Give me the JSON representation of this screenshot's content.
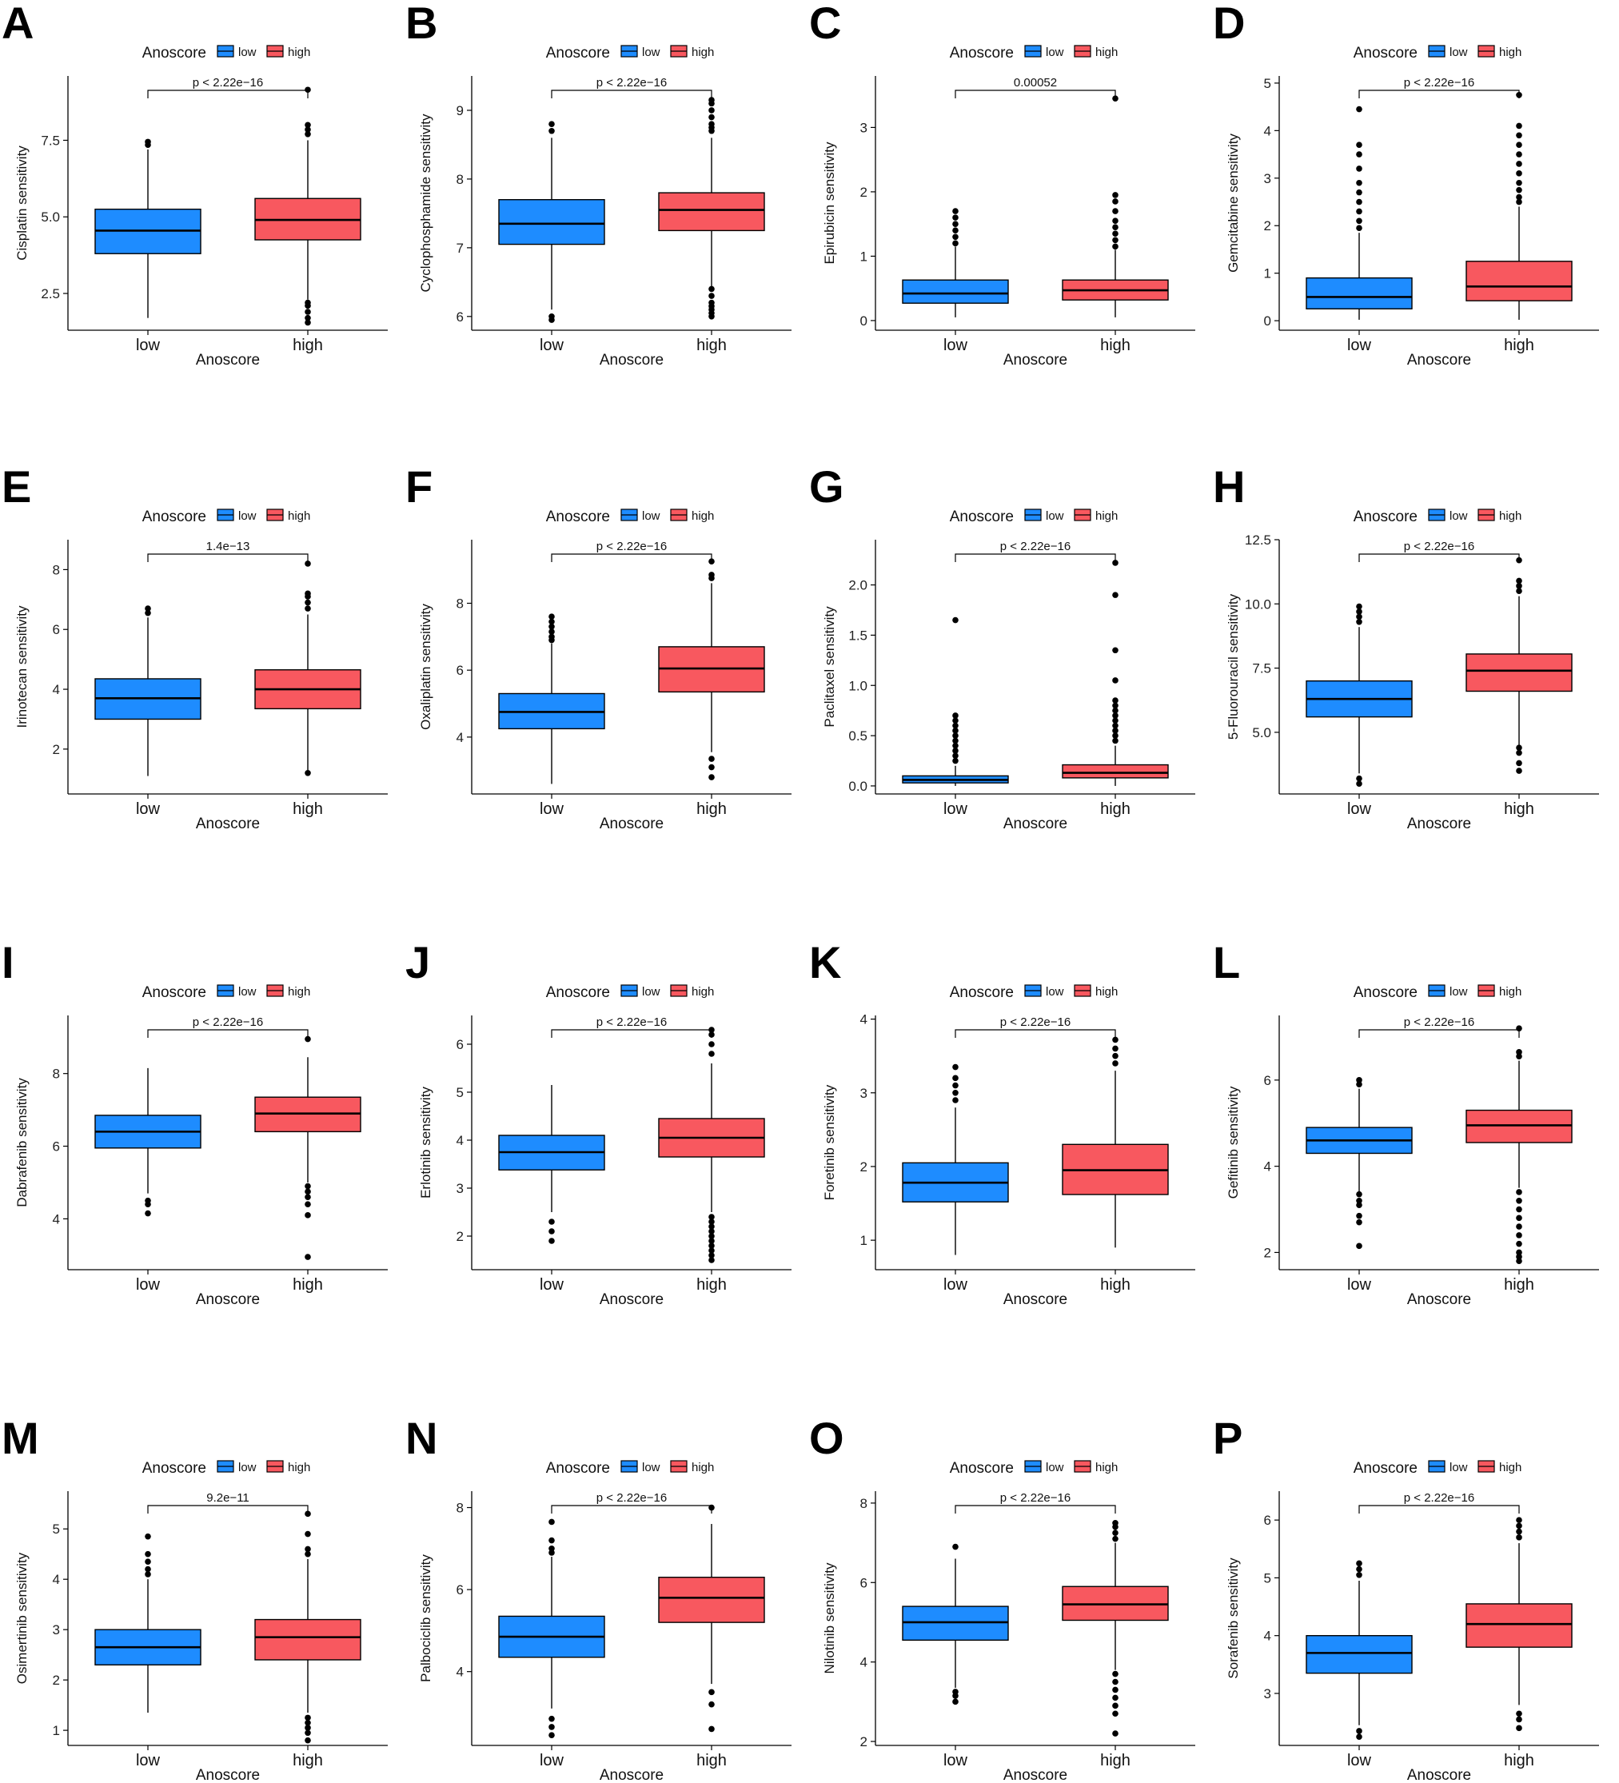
{
  "colors": {
    "low": "#1e8cff",
    "high": "#f8585f",
    "line": "#000000"
  },
  "chart_data": [
    {
      "type": "box",
      "panel": "A",
      "title": "",
      "legend_title": "Anoscore",
      "legend": [
        "low",
        "high"
      ],
      "xlabel": "Anoscore",
      "ylabel": "Cisplatin sensitivity",
      "categories": [
        "low",
        "high"
      ],
      "ylim": [
        1.3,
        9.6
      ],
      "yticks": [
        2.5,
        5.0,
        7.5
      ],
      "ytick_labels": [
        "2.5",
        "5.0",
        "7.5"
      ],
      "pvalue": "p < 2.22e−16",
      "boxes": [
        {
          "group": "low",
          "min": 1.7,
          "q1": 3.8,
          "median": 4.55,
          "q3": 5.25,
          "max": 7.2,
          "outliers": [
            7.35,
            7.45
          ]
        },
        {
          "group": "high",
          "min": 2.3,
          "q1": 4.25,
          "median": 4.9,
          "q3": 5.6,
          "max": 7.5,
          "outliers": [
            1.55,
            1.7,
            1.9,
            2.1,
            2.2,
            7.7,
            7.85,
            8.0,
            9.15
          ]
        }
      ]
    },
    {
      "type": "box",
      "panel": "B",
      "title": "",
      "legend_title": "Anoscore",
      "legend": [
        "low",
        "high"
      ],
      "xlabel": "Anoscore",
      "ylabel": "Cyclophosphamide sensitivity",
      "categories": [
        "low",
        "high"
      ],
      "ylim": [
        5.8,
        9.5
      ],
      "yticks": [
        6,
        7,
        8,
        9
      ],
      "ytick_labels": [
        "6",
        "7",
        "8",
        "9"
      ],
      "pvalue": "p < 2.22e−16",
      "boxes": [
        {
          "group": "low",
          "min": 6.1,
          "q1": 7.05,
          "median": 7.35,
          "q3": 7.7,
          "max": 8.6,
          "outliers": [
            5.95,
            6.0,
            8.7,
            8.8
          ]
        },
        {
          "group": "high",
          "min": 6.4,
          "q1": 7.25,
          "median": 7.55,
          "q3": 7.8,
          "max": 8.6,
          "outliers": [
            6.0,
            6.05,
            6.1,
            6.15,
            6.2,
            6.3,
            6.4,
            8.7,
            8.75,
            8.8,
            8.9,
            9.0,
            9.1,
            9.15
          ]
        }
      ]
    },
    {
      "type": "box",
      "panel": "C",
      "title": "",
      "legend_title": "Anoscore",
      "legend": [
        "low",
        "high"
      ],
      "xlabel": "Anoscore",
      "ylabel": "Epirubicin sensitivity",
      "categories": [
        "low",
        "high"
      ],
      "ylim": [
        -0.15,
        3.8
      ],
      "yticks": [
        0,
        1,
        2,
        3
      ],
      "ytick_labels": [
        "0",
        "1",
        "2",
        "3"
      ],
      "pvalue": "0.00052",
      "boxes": [
        {
          "group": "low",
          "min": 0.05,
          "q1": 0.27,
          "median": 0.42,
          "q3": 0.63,
          "max": 1.15,
          "outliers": [
            1.2,
            1.3,
            1.4,
            1.5,
            1.6,
            1.7
          ]
        },
        {
          "group": "high",
          "min": 0.05,
          "q1": 0.32,
          "median": 0.47,
          "q3": 0.63,
          "max": 1.1,
          "outliers": [
            1.15,
            1.25,
            1.35,
            1.45,
            1.55,
            1.7,
            1.85,
            1.95,
            3.45
          ]
        }
      ]
    },
    {
      "type": "box",
      "panel": "D",
      "title": "",
      "legend_title": "Anoscore",
      "legend": [
        "low",
        "high"
      ],
      "xlabel": "Anoscore",
      "ylabel": "Gemcitabine sensitivity",
      "categories": [
        "low",
        "high"
      ],
      "ylim": [
        -0.2,
        5.15
      ],
      "yticks": [
        0,
        1,
        2,
        3,
        4,
        5
      ],
      "ytick_labels": [
        "0",
        "1",
        "2",
        "3",
        "4",
        "5"
      ],
      "pvalue": "p < 2.22e−16",
      "boxes": [
        {
          "group": "low",
          "min": 0.02,
          "q1": 0.25,
          "median": 0.5,
          "q3": 0.9,
          "max": 1.85,
          "outliers": [
            1.95,
            2.1,
            2.3,
            2.5,
            2.7,
            2.9,
            3.2,
            3.5,
            3.7,
            4.45
          ]
        },
        {
          "group": "high",
          "min": 0.02,
          "q1": 0.42,
          "median": 0.72,
          "q3": 1.25,
          "max": 2.4,
          "outliers": [
            2.5,
            2.6,
            2.75,
            2.9,
            3.1,
            3.3,
            3.5,
            3.7,
            3.9,
            4.1,
            4.75
          ]
        }
      ]
    },
    {
      "type": "box",
      "panel": "E",
      "title": "",
      "legend_title": "Anoscore",
      "legend": [
        "low",
        "high"
      ],
      "xlabel": "Anoscore",
      "ylabel": "Irinotecan sensitivity",
      "categories": [
        "low",
        "high"
      ],
      "ylim": [
        0.5,
        9.0
      ],
      "yticks": [
        2,
        4,
        6,
        8
      ],
      "ytick_labels": [
        "2",
        "4",
        "6",
        "8"
      ],
      "pvalue": "1.4e−13",
      "boxes": [
        {
          "group": "low",
          "min": 1.1,
          "q1": 3.0,
          "median": 3.7,
          "q3": 4.35,
          "max": 6.4,
          "outliers": [
            6.55,
            6.7
          ]
        },
        {
          "group": "high",
          "min": 1.3,
          "q1": 3.35,
          "median": 4.0,
          "q3": 4.65,
          "max": 6.5,
          "outliers": [
            1.2,
            6.7,
            6.9,
            7.1,
            7.2,
            8.2
          ]
        }
      ]
    },
    {
      "type": "box",
      "panel": "F",
      "title": "",
      "legend_title": "Anoscore",
      "legend": [
        "low",
        "high"
      ],
      "xlabel": "Anoscore",
      "ylabel": "Oxaliplatin sensitivity",
      "categories": [
        "low",
        "high"
      ],
      "ylim": [
        2.3,
        9.9
      ],
      "yticks": [
        4,
        6,
        8
      ],
      "ytick_labels": [
        "4",
        "6",
        "8"
      ],
      "pvalue": "p < 2.22e−16",
      "boxes": [
        {
          "group": "low",
          "min": 2.6,
          "q1": 4.25,
          "median": 4.75,
          "q3": 5.3,
          "max": 6.8,
          "outliers": [
            6.9,
            7.0,
            7.15,
            7.3,
            7.45,
            7.6
          ]
        },
        {
          "group": "high",
          "min": 3.55,
          "q1": 5.35,
          "median": 6.05,
          "q3": 6.7,
          "max": 8.6,
          "outliers": [
            2.8,
            3.1,
            3.35,
            8.75,
            8.85,
            9.25
          ]
        }
      ]
    },
    {
      "type": "box",
      "panel": "G",
      "title": "",
      "legend_title": "Anoscore",
      "legend": [
        "low",
        "high"
      ],
      "xlabel": "Anoscore",
      "ylabel": "Paclitaxel sensitivity",
      "categories": [
        "low",
        "high"
      ],
      "ylim": [
        -0.08,
        2.45
      ],
      "yticks": [
        0,
        0.5,
        1.0,
        1.5,
        2.0
      ],
      "ytick_labels": [
        "0.0",
        "0.5",
        "1.0",
        "1.5",
        "2.0"
      ],
      "pvalue": "p < 2.22e−16",
      "boxes": [
        {
          "group": "low",
          "min": 0.0,
          "q1": 0.03,
          "median": 0.06,
          "q3": 0.1,
          "max": 0.2,
          "outliers": [
            0.25,
            0.3,
            0.35,
            0.4,
            0.45,
            0.5,
            0.55,
            0.6,
            0.65,
            0.7,
            1.65
          ]
        },
        {
          "group": "high",
          "min": 0.0,
          "q1": 0.08,
          "median": 0.13,
          "q3": 0.21,
          "max": 0.4,
          "outliers": [
            0.45,
            0.5,
            0.55,
            0.6,
            0.65,
            0.7,
            0.75,
            0.8,
            0.85,
            1.05,
            1.35,
            1.9,
            2.22
          ]
        }
      ]
    },
    {
      "type": "box",
      "panel": "H",
      "title": "",
      "legend_title": "Anoscore",
      "legend": [
        "low",
        "high"
      ],
      "xlabel": "Anoscore",
      "ylabel": "5-Fluorouracil sensitivity",
      "categories": [
        "low",
        "high"
      ],
      "ylim": [
        2.6,
        12.5
      ],
      "yticks": [
        5.0,
        7.5,
        10.0,
        12.5
      ],
      "ytick_labels": [
        "5.0",
        "7.5",
        "10.0",
        "12.5"
      ],
      "pvalue": "p < 2.22e−16",
      "boxes": [
        {
          "group": "low",
          "min": 3.4,
          "q1": 5.6,
          "median": 6.3,
          "q3": 7.0,
          "max": 9.1,
          "outliers": [
            3.0,
            3.2,
            9.3,
            9.5,
            9.7,
            9.9
          ]
        },
        {
          "group": "high",
          "min": 4.5,
          "q1": 6.6,
          "median": 7.4,
          "q3": 8.05,
          "max": 10.3,
          "outliers": [
            3.5,
            3.8,
            4.2,
            4.4,
            10.5,
            10.7,
            10.9,
            11.7
          ]
        }
      ]
    },
    {
      "type": "box",
      "panel": "I",
      "title": "",
      "legend_title": "Anoscore",
      "legend": [
        "low",
        "high"
      ],
      "xlabel": "Anoscore",
      "ylabel": "Dabrafenib sensitivity",
      "categories": [
        "low",
        "high"
      ],
      "ylim": [
        2.6,
        9.6
      ],
      "yticks": [
        4,
        6,
        8
      ],
      "ytick_labels": [
        "4",
        "6",
        "8"
      ],
      "pvalue": "p < 2.22e−16",
      "boxes": [
        {
          "group": "low",
          "min": 4.7,
          "q1": 5.95,
          "median": 6.4,
          "q3": 6.85,
          "max": 8.15,
          "outliers": [
            4.15,
            4.4,
            4.5
          ]
        },
        {
          "group": "high",
          "min": 5.0,
          "q1": 6.4,
          "median": 6.9,
          "q3": 7.35,
          "max": 8.45,
          "outliers": [
            2.95,
            4.1,
            4.4,
            4.6,
            4.75,
            4.9,
            8.95
          ]
        }
      ]
    },
    {
      "type": "box",
      "panel": "J",
      "title": "",
      "legend_title": "Anoscore",
      "legend": [
        "low",
        "high"
      ],
      "xlabel": "Anoscore",
      "ylabel": "Erlotinib sensitivity",
      "categories": [
        "low",
        "high"
      ],
      "ylim": [
        1.3,
        6.6
      ],
      "yticks": [
        2,
        3,
        4,
        5,
        6
      ],
      "ytick_labels": [
        "2",
        "3",
        "4",
        "5",
        "6"
      ],
      "pvalue": "p < 2.22e−16",
      "boxes": [
        {
          "group": "low",
          "min": 2.5,
          "q1": 3.38,
          "median": 3.75,
          "q3": 4.1,
          "max": 5.15,
          "outliers": [
            1.9,
            2.1,
            2.3
          ]
        },
        {
          "group": "high",
          "min": 2.5,
          "q1": 3.65,
          "median": 4.05,
          "q3": 4.45,
          "max": 5.6,
          "outliers": [
            1.5,
            1.6,
            1.7,
            1.8,
            1.9,
            2.0,
            2.1,
            2.2,
            2.3,
            2.4,
            5.8,
            6.0,
            6.2,
            6.3
          ]
        }
      ]
    },
    {
      "type": "box",
      "panel": "K",
      "title": "",
      "legend_title": "Anoscore",
      "legend": [
        "low",
        "high"
      ],
      "xlabel": "Anoscore",
      "ylabel": "Foretinib sensitivity",
      "categories": [
        "low",
        "high"
      ],
      "ylim": [
        0.6,
        4.05
      ],
      "yticks": [
        1,
        2,
        3,
        4
      ],
      "ytick_labels": [
        "1",
        "2",
        "3",
        "4"
      ],
      "pvalue": "p < 2.22e−16",
      "boxes": [
        {
          "group": "low",
          "min": 0.8,
          "q1": 1.52,
          "median": 1.78,
          "q3": 2.05,
          "max": 2.8,
          "outliers": [
            2.9,
            3.0,
            3.1,
            3.2,
            3.35
          ]
        },
        {
          "group": "high",
          "min": 0.9,
          "q1": 1.62,
          "median": 1.95,
          "q3": 2.3,
          "max": 3.3,
          "outliers": [
            3.4,
            3.5,
            3.6,
            3.72
          ]
        }
      ]
    },
    {
      "type": "box",
      "panel": "L",
      "title": "",
      "legend_title": "Anoscore",
      "legend": [
        "low",
        "high"
      ],
      "xlabel": "Anoscore",
      "ylabel": "Gefitinib sensitivity",
      "categories": [
        "low",
        "high"
      ],
      "ylim": [
        1.6,
        7.5
      ],
      "yticks": [
        2,
        4,
        6
      ],
      "ytick_labels": [
        "2",
        "4",
        "6"
      ],
      "pvalue": "p < 2.22e−16",
      "boxes": [
        {
          "group": "low",
          "min": 3.3,
          "q1": 4.3,
          "median": 4.6,
          "q3": 4.9,
          "max": 5.8,
          "outliers": [
            2.15,
            2.7,
            2.85,
            3.1,
            3.2,
            3.35,
            5.9,
            6.0
          ]
        },
        {
          "group": "high",
          "min": 3.5,
          "q1": 4.55,
          "median": 4.95,
          "q3": 5.3,
          "max": 6.45,
          "outliers": [
            1.8,
            1.9,
            2.0,
            2.2,
            2.4,
            2.6,
            2.8,
            3.0,
            3.2,
            3.4,
            6.55,
            6.65,
            7.2
          ]
        }
      ]
    },
    {
      "type": "box",
      "panel": "M",
      "title": "",
      "legend_title": "Anoscore",
      "legend": [
        "low",
        "high"
      ],
      "xlabel": "Anoscore",
      "ylabel": "Osimertinib sensitivity",
      "categories": [
        "low",
        "high"
      ],
      "ylim": [
        0.7,
        5.75
      ],
      "yticks": [
        1,
        2,
        3,
        4,
        5
      ],
      "ytick_labels": [
        "1",
        "2",
        "3",
        "4",
        "5"
      ],
      "pvalue": "9.2e−11",
      "boxes": [
        {
          "group": "low",
          "min": 1.35,
          "q1": 2.3,
          "median": 2.65,
          "q3": 3.0,
          "max": 4.0,
          "outliers": [
            4.1,
            4.2,
            4.35,
            4.5,
            4.85
          ]
        },
        {
          "group": "high",
          "min": 1.35,
          "q1": 2.4,
          "median": 2.85,
          "q3": 3.2,
          "max": 4.4,
          "outliers": [
            0.8,
            0.95,
            1.05,
            1.15,
            1.25,
            4.5,
            4.6,
            4.9,
            5.3
          ]
        }
      ]
    },
    {
      "type": "box",
      "panel": "N",
      "title": "",
      "legend_title": "Anoscore",
      "legend": [
        "low",
        "high"
      ],
      "xlabel": "Anoscore",
      "ylabel": "Palbociclib sensitivity",
      "categories": [
        "low",
        "high"
      ],
      "ylim": [
        2.2,
        8.4
      ],
      "yticks": [
        4,
        6,
        8
      ],
      "ytick_labels": [
        "4",
        "6",
        "8"
      ],
      "pvalue": "p < 2.22e−16",
      "boxes": [
        {
          "group": "low",
          "min": 3.1,
          "q1": 4.35,
          "median": 4.85,
          "q3": 5.35,
          "max": 6.8,
          "outliers": [
            2.45,
            2.65,
            2.85,
            6.9,
            7.0,
            7.2,
            7.65
          ]
        },
        {
          "group": "high",
          "min": 3.7,
          "q1": 5.2,
          "median": 5.8,
          "q3": 6.3,
          "max": 7.6,
          "outliers": [
            2.6,
            3.2,
            3.5,
            8.0
          ]
        }
      ]
    },
    {
      "type": "box",
      "panel": "O",
      "title": "",
      "legend_title": "Anoscore",
      "legend": [
        "low",
        "high"
      ],
      "xlabel": "Anoscore",
      "ylabel": "Nilotinib sensitivity",
      "categories": [
        "low",
        "high"
      ],
      "ylim": [
        1.9,
        8.3
      ],
      "yticks": [
        2,
        4,
        6,
        8
      ],
      "ytick_labels": [
        "2",
        "4",
        "6",
        "8"
      ],
      "pvalue": "p < 2.22e−16",
      "boxes": [
        {
          "group": "low",
          "min": 3.35,
          "q1": 4.55,
          "median": 5.0,
          "q3": 5.4,
          "max": 6.6,
          "outliers": [
            3.0,
            3.15,
            3.25,
            6.9
          ]
        },
        {
          "group": "high",
          "min": 3.8,
          "q1": 5.05,
          "median": 5.45,
          "q3": 5.9,
          "max": 7.0,
          "outliers": [
            2.2,
            2.7,
            2.9,
            3.1,
            3.3,
            3.5,
            3.7,
            7.1,
            7.25,
            7.4,
            7.5
          ]
        }
      ]
    },
    {
      "type": "box",
      "panel": "P",
      "title": "",
      "legend_title": "Anoscore",
      "legend": [
        "low",
        "high"
      ],
      "xlabel": "Anoscore",
      "ylabel": "Sorafenib sensitivity",
      "categories": [
        "low",
        "high"
      ],
      "ylim": [
        2.1,
        6.5
      ],
      "yticks": [
        3,
        4,
        5,
        6
      ],
      "ytick_labels": [
        "3",
        "4",
        "5",
        "6"
      ],
      "pvalue": "p < 2.22e−16",
      "boxes": [
        {
          "group": "low",
          "min": 2.45,
          "q1": 3.35,
          "median": 3.7,
          "q3": 4.0,
          "max": 4.95,
          "outliers": [
            2.25,
            2.35,
            5.05,
            5.15,
            5.25
          ]
        },
        {
          "group": "high",
          "min": 2.8,
          "q1": 3.8,
          "median": 4.2,
          "q3": 4.55,
          "max": 5.6,
          "outliers": [
            2.4,
            2.55,
            2.65,
            5.7,
            5.8,
            5.9,
            6.0
          ]
        }
      ]
    }
  ]
}
